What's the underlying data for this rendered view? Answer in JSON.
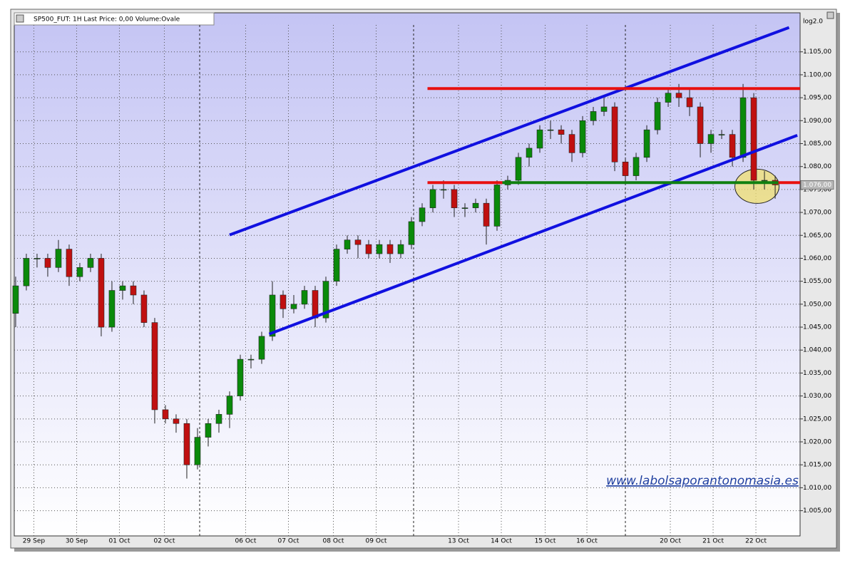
{
  "chart_data": {
    "type": "candlestick",
    "title": "SP500_FUT: 1H Last Price: 0,00 Volume:Ovale",
    "scale_label": "log2.0",
    "watermark": "www.labolsaporantonomasia.es",
    "up_color": "#0a8a0a",
    "down_color": "#c01010",
    "open": [
      1048,
      1054,
      1060,
      1060,
      1058,
      1062,
      1056,
      1058,
      1060,
      1045,
      1053,
      1054,
      1052,
      1046,
      1027,
      1025,
      1024,
      1015,
      1021,
      1024,
      1026,
      1030,
      1038,
      1038,
      1043,
      1052,
      1049,
      1050,
      1053,
      1047,
      1055,
      1062,
      1064,
      1063,
      1061,
      1063,
      1061,
      1063,
      1068,
      1071,
      1075,
      1075,
      1071,
      1071,
      1072,
      1067,
      1076,
      1077,
      1082,
      1084,
      1088,
      1088,
      1087,
      1083,
      1090,
      1092,
      1093,
      1081,
      1078,
      1082,
      1088,
      1094,
      1096,
      1095,
      1093,
      1085,
      1087,
      1087,
      1082,
      1095,
      1077,
      1077
    ],
    "high": [
      1056,
      1061,
      1061,
      1061,
      1064,
      1063,
      1059,
      1061,
      1061,
      1055,
      1055,
      1055,
      1053,
      1047,
      1028,
      1026,
      1025,
      1023,
      1025,
      1027,
      1031,
      1039,
      1039,
      1044,
      1055,
      1053,
      1052,
      1054,
      1054,
      1056,
      1063,
      1065,
      1065,
      1064,
      1064,
      1064,
      1064,
      1069,
      1072,
      1076,
      1077,
      1076,
      1072,
      1073,
      1073,
      1077,
      1078,
      1083,
      1085,
      1089,
      1090,
      1089,
      1088,
      1091,
      1093,
      1095,
      1094,
      1082,
      1083,
      1089,
      1095,
      1097,
      1098,
      1097,
      1094,
      1088,
      1088,
      1088,
      1098,
      1096,
      1079,
      1078
    ],
    "low": [
      1045,
      1053,
      1058,
      1056,
      1057,
      1054,
      1055,
      1057,
      1043,
      1044,
      1051,
      1050,
      1045,
      1024,
      1024,
      1022,
      1012,
      1014,
      1019,
      1022,
      1023,
      1029,
      1036,
      1037,
      1042,
      1047,
      1048,
      1049,
      1045,
      1046,
      1054,
      1061,
      1060,
      1060,
      1060,
      1059,
      1060,
      1062,
      1067,
      1070,
      1073,
      1069,
      1069,
      1070,
      1063,
      1066,
      1075,
      1076,
      1080,
      1083,
      1086,
      1085,
      1081,
      1082,
      1089,
      1091,
      1079,
      1076,
      1077,
      1081,
      1087,
      1093,
      1093,
      1091,
      1082,
      1083,
      1086,
      1080,
      1081,
      1075,
      1075,
      1073
    ],
    "close": [
      1054,
      1060,
      1060,
      1058,
      1062,
      1056,
      1058,
      1060,
      1045,
      1053,
      1054,
      1052,
      1046,
      1027,
      1025,
      1024,
      1015,
      1021,
      1024,
      1026,
      1030,
      1038,
      1038,
      1043,
      1052,
      1049,
      1050,
      1053,
      1047,
      1055,
      1062,
      1064,
      1063,
      1061,
      1063,
      1061,
      1063,
      1068,
      1071,
      1075,
      1075,
      1071,
      1071,
      1072,
      1067,
      1076,
      1077,
      1082,
      1084,
      1088,
      1088,
      1087,
      1083,
      1090,
      1092,
      1093,
      1081,
      1078,
      1082,
      1088,
      1094,
      1096,
      1095,
      1093,
      1085,
      1087,
      1087,
      1082,
      1095,
      1077,
      1077,
      1076
    ],
    "xlim": [
      -0.13,
      73.33
    ],
    "xticks": [
      {
        "value": 1.7,
        "label": "29 Sep"
      },
      {
        "value": 5.7,
        "label": "30 Sep"
      },
      {
        "value": 9.7,
        "label": "01 Oct"
      },
      {
        "value": 13.9,
        "label": "02 Oct"
      },
      {
        "value": 21.5,
        "label": "06 Oct"
      },
      {
        "value": 25.5,
        "label": "07 Oct"
      },
      {
        "value": 29.7,
        "label": "08 Oct"
      },
      {
        "value": 33.7,
        "label": "09 Oct"
      },
      {
        "value": 41.4,
        "label": "13 Oct"
      },
      {
        "value": 45.4,
        "label": "14 Oct"
      },
      {
        "value": 49.5,
        "label": "15 Oct"
      },
      {
        "value": 53.4,
        "label": "16 Oct"
      },
      {
        "value": 61.2,
        "label": "20 Oct"
      },
      {
        "value": 65.2,
        "label": "21 Oct"
      },
      {
        "value": 69.2,
        "label": "22 Oct"
      }
    ],
    "ylim": [
      999.5,
      1113.5
    ],
    "yticks": [
      {
        "value": 1005,
        "label": "1.005,00"
      },
      {
        "value": 1010,
        "label": "1.010,00"
      },
      {
        "value": 1015,
        "label": "1.015,00"
      },
      {
        "value": 1020,
        "label": "1.020,00"
      },
      {
        "value": 1025,
        "label": "1.025,00"
      },
      {
        "value": 1030,
        "label": "1.030,00"
      },
      {
        "value": 1035,
        "label": "1.035,00"
      },
      {
        "value": 1040,
        "label": "1.040,00"
      },
      {
        "value": 1045,
        "label": "1.045,00"
      },
      {
        "value": 1050,
        "label": "1.050,00"
      },
      {
        "value": 1055,
        "label": "1.055,00"
      },
      {
        "value": 1060,
        "label": "1.060,00"
      },
      {
        "value": 1065,
        "label": "1.065,00"
      },
      {
        "value": 1070,
        "label": "1.070,00"
      },
      {
        "value": 1075,
        "label": "1.075,00"
      },
      {
        "value": 1080,
        "label": "1.080,00"
      },
      {
        "value": 1085,
        "label": "1.085,00"
      },
      {
        "value": 1090,
        "label": "1.090,00"
      },
      {
        "value": 1095,
        "label": "1.095,00"
      },
      {
        "value": 1100,
        "label": "1.100,00"
      },
      {
        "value": 1105,
        "label": "1.105,00"
      }
    ],
    "last_price": {
      "value": 1076,
      "label": "1.076,00"
    },
    "grid": true,
    "trendlines": [
      {
        "color": "#1010e0",
        "x": [
          20,
          72.3
        ],
        "y": [
          1065.1,
          1110.3
        ]
      },
      {
        "color": "#1010e0",
        "x": [
          23.7,
          73.07
        ],
        "y": [
          1043.5,
          1086.8
        ]
      },
      {
        "color": "#e81010",
        "x": [
          38.5,
          73.33
        ],
        "y": [
          1097,
          1097
        ]
      },
      {
        "color": "#e81010",
        "x": [
          38.5,
          45.5
        ],
        "y": [
          1076.5,
          1076.5
        ]
      },
      {
        "color": "#e81010",
        "x": [
          71.3,
          73.33
        ],
        "y": [
          1076.5,
          1076.5
        ]
      },
      {
        "color": "#108010",
        "x": [
          45.5,
          71.3
        ],
        "y": [
          1076.5,
          1076.5
        ]
      }
    ],
    "highlight": {
      "x": 69.3,
      "y": 1075.7,
      "color": "#f0e070"
    }
  }
}
